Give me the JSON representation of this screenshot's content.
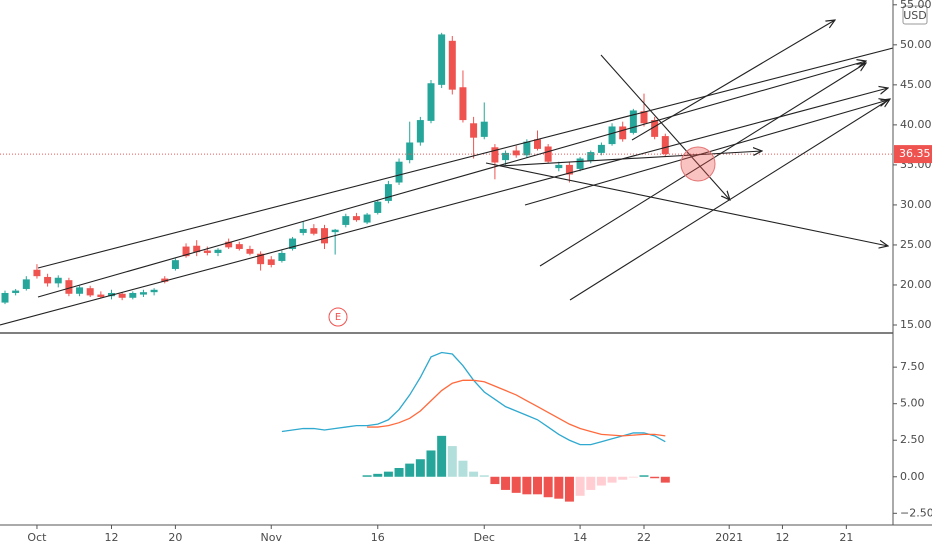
{
  "chart_data": [
    {
      "type": "candlestick",
      "unit": "USD",
      "annotation": "E",
      "last_price": 36.35,
      "up_color": "#26a69a",
      "down_color": "#ef5350",
      "ylim": [
        14,
        55.6
      ],
      "yticks": [
        {
          "value": 15,
          "label": "15.00"
        },
        {
          "value": 20,
          "label": "20.00"
        },
        {
          "value": 25,
          "label": "25.00"
        },
        {
          "value": 30,
          "label": "30.00"
        },
        {
          "value": 35,
          "label": "35.00"
        },
        {
          "value": 40,
          "label": "40.00"
        },
        {
          "value": 45,
          "label": "45.00"
        },
        {
          "value": 50,
          "label": "50.00"
        },
        {
          "value": 55,
          "label": "55.00"
        }
      ],
      "categories": [
        null,
        null,
        null,
        "Oct",
        null,
        null,
        null,
        null,
        null,
        null,
        "12",
        null,
        null,
        null,
        null,
        null,
        "20",
        null,
        null,
        null,
        null,
        null,
        null,
        null,
        null,
        "Nov",
        null,
        null,
        null,
        null,
        null,
        null,
        null,
        null,
        null,
        "16",
        null,
        null,
        null,
        null,
        null,
        null,
        null,
        null,
        null,
        "Dec",
        null,
        null,
        null,
        null,
        null,
        null,
        null,
        null,
        "14",
        null,
        null,
        null,
        null,
        null,
        "22",
        null,
        null,
        null,
        null,
        null,
        null,
        null,
        "2021",
        null,
        null,
        null,
        null,
        "12",
        null,
        null,
        null,
        null,
        null,
        "21",
        null,
        null,
        null,
        null
      ],
      "open": [
        17.8,
        19.0,
        19.5,
        21.9,
        21.0,
        20.2,
        20.6,
        18.9,
        19.6,
        18.8,
        18.6,
        18.9,
        18.4,
        18.8,
        19.1,
        20.8,
        22.0,
        24.8,
        24.9,
        24.3,
        24.0,
        25.4,
        25.1,
        24.5,
        23.9,
        23.2,
        23.0,
        24.5,
        26.5,
        27.1,
        27.1,
        26.6,
        27.5,
        28.6,
        27.8,
        29.0,
        30.5,
        32.8,
        35.6,
        37.8,
        40.5,
        45.0,
        50.5,
        44.7,
        40.2,
        38.5,
        37.2,
        35.6,
        36.8,
        36.2,
        38.2,
        37.3,
        34.6,
        35.0,
        34.5,
        35.5,
        36.5,
        37.6,
        39.8,
        39.0,
        41.7,
        40.6,
        38.6,
        null,
        null,
        null,
        null,
        null,
        null,
        null,
        null,
        null,
        null,
        null,
        null,
        null,
        null,
        null,
        null,
        null,
        null,
        null,
        null,
        null
      ],
      "high": [
        19.3,
        19.5,
        21.1,
        22.6,
        21.4,
        21.2,
        20.9,
        19.9,
        19.9,
        19.2,
        19.4,
        19.1,
        19.2,
        19.4,
        19.6,
        21.1,
        23.3,
        25.2,
        25.6,
        24.8,
        24.6,
        25.8,
        25.4,
        24.9,
        24.2,
        23.6,
        24.3,
        26.0,
        27.9,
        27.6,
        27.5,
        27.0,
        28.9,
        29.0,
        29.0,
        30.6,
        33.0,
        35.8,
        40.4,
        41.0,
        45.6,
        51.5,
        51.1,
        46.8,
        41.0,
        42.8,
        37.6,
        36.8,
        37.4,
        38.2,
        39.3,
        37.6,
        35.4,
        35.3,
        36.0,
        36.8,
        37.8,
        40.2,
        40.4,
        42.0,
        43.9,
        41.0,
        38.9,
        null,
        null,
        null,
        null,
        null,
        null,
        null,
        null,
        null,
        null,
        null,
        null,
        null,
        null,
        null,
        null,
        null,
        null,
        null,
        null,
        null
      ],
      "low": [
        17.6,
        18.7,
        19.3,
        20.8,
        19.8,
        19.7,
        18.6,
        18.6,
        18.5,
        18.3,
        18.2,
        18.1,
        18.2,
        18.5,
        18.7,
        20.2,
        21.8,
        23.4,
        23.6,
        23.7,
        23.6,
        24.5,
        24.3,
        23.7,
        21.8,
        22.2,
        22.8,
        24.3,
        26.2,
        26.2,
        24.5,
        23.8,
        27.2,
        27.9,
        27.6,
        28.8,
        30.2,
        32.5,
        35.2,
        37.4,
        40.2,
        44.6,
        43.8,
        40.3,
        35.8,
        38.2,
        33.2,
        35.0,
        35.9,
        35.9,
        36.8,
        35.2,
        34.2,
        32.8,
        34.2,
        35.2,
        36.2,
        37.4,
        37.9,
        38.8,
        39.8,
        38.2,
        36.1,
        null,
        null,
        null,
        null,
        null,
        null,
        null,
        null,
        null,
        null,
        null,
        null,
        null,
        null,
        null,
        null,
        null,
        null,
        null,
        null,
        null
      ],
      "close": [
        19.0,
        19.3,
        20.7,
        21.1,
        20.2,
        20.9,
        18.9,
        19.7,
        18.7,
        18.5,
        19.0,
        18.4,
        19.0,
        19.1,
        19.4,
        20.4,
        23.1,
        23.6,
        24.1,
        24.0,
        24.4,
        24.7,
        24.5,
        23.9,
        22.6,
        22.5,
        24.0,
        25.8,
        27.0,
        26.4,
        25.2,
        26.9,
        28.6,
        28.1,
        28.8,
        30.4,
        32.6,
        35.4,
        37.8,
        40.6,
        45.2,
        51.3,
        44.4,
        40.6,
        38.4,
        40.4,
        35.3,
        36.5,
        36.2,
        37.9,
        37.0,
        35.4,
        35.0,
        33.8,
        35.8,
        36.6,
        37.5,
        39.8,
        38.2,
        41.8,
        40.2,
        38.5,
        36.35,
        null,
        null,
        null,
        null,
        null,
        null,
        null,
        null,
        null,
        null,
        null,
        null,
        null,
        null,
        null,
        null,
        null,
        null,
        null,
        null,
        null
      ]
    },
    {
      "type": "macd",
      "ylim": [
        -3.3,
        9.7
      ],
      "yticks": [
        {
          "value": -2.5,
          "label": "−2.50"
        },
        {
          "value": 0,
          "label": "0.00"
        },
        {
          "value": 2.5,
          "label": "2.50"
        },
        {
          "value": 5,
          "label": "5.00"
        },
        {
          "value": 7.5,
          "label": "7.50"
        }
      ],
      "histogram": {
        "colors": [
          "#26a69a",
          "#b2dfdb",
          "#ffcdd2",
          "#ef5350"
        ],
        "values": [
          null,
          null,
          null,
          null,
          null,
          null,
          null,
          null,
          null,
          null,
          null,
          null,
          null,
          null,
          null,
          null,
          null,
          null,
          null,
          null,
          null,
          null,
          null,
          null,
          null,
          null,
          null,
          null,
          null,
          null,
          null,
          null,
          null,
          null,
          0.1,
          0.2,
          0.35,
          0.6,
          0.9,
          1.2,
          1.8,
          2.8,
          2.1,
          1.1,
          0.35,
          0.1,
          -0.5,
          -0.9,
          -1.1,
          -1.2,
          -1.2,
          -1.4,
          -1.5,
          -1.7,
          -1.3,
          -0.9,
          -0.6,
          -0.4,
          -0.2,
          -0.05,
          0.1,
          -0.1,
          -0.4,
          null,
          null,
          null,
          null,
          null,
          null,
          null,
          null,
          null,
          null,
          null,
          null,
          null,
          null,
          null,
          null,
          null,
          null,
          null,
          null,
          null
        ]
      },
      "series": [
        {
          "color": "#2fa9cf",
          "values": [
            null,
            null,
            null,
            null,
            null,
            null,
            null,
            null,
            null,
            null,
            null,
            null,
            null,
            null,
            null,
            null,
            null,
            null,
            null,
            null,
            null,
            null,
            null,
            null,
            null,
            null,
            3.1,
            3.2,
            3.3,
            3.3,
            3.2,
            3.3,
            3.4,
            3.5,
            3.5,
            3.6,
            3.9,
            4.6,
            5.6,
            6.8,
            8.2,
            8.5,
            8.4,
            7.6,
            6.6,
            5.8,
            5.3,
            4.8,
            4.5,
            4.2,
            3.9,
            3.4,
            2.9,
            2.5,
            2.2,
            2.2,
            2.4,
            2.6,
            2.8,
            3.0,
            3.0,
            2.8,
            2.4,
            null,
            null,
            null,
            null,
            null,
            null,
            null,
            null,
            null,
            null,
            null,
            null,
            null,
            null,
            null,
            null,
            null,
            null,
            null,
            null,
            null
          ]
        },
        {
          "color": "#ff6a3d",
          "values": [
            null,
            null,
            null,
            null,
            null,
            null,
            null,
            null,
            null,
            null,
            null,
            null,
            null,
            null,
            null,
            null,
            null,
            null,
            null,
            null,
            null,
            null,
            null,
            null,
            null,
            null,
            null,
            null,
            null,
            null,
            null,
            null,
            null,
            null,
            3.4,
            3.4,
            3.5,
            3.7,
            4.0,
            4.5,
            5.2,
            5.9,
            6.4,
            6.6,
            6.6,
            6.5,
            6.2,
            5.9,
            5.6,
            5.2,
            4.8,
            4.4,
            4.0,
            3.6,
            3.3,
            3.1,
            2.9,
            2.85,
            2.8,
            2.85,
            2.9,
            2.9,
            2.8,
            null,
            null,
            null,
            null,
            null,
            null,
            null,
            null,
            null,
            null,
            null,
            null,
            null,
            null,
            null,
            null,
            null,
            null,
            null,
            null,
            null
          ]
        }
      ]
    }
  ]
}
